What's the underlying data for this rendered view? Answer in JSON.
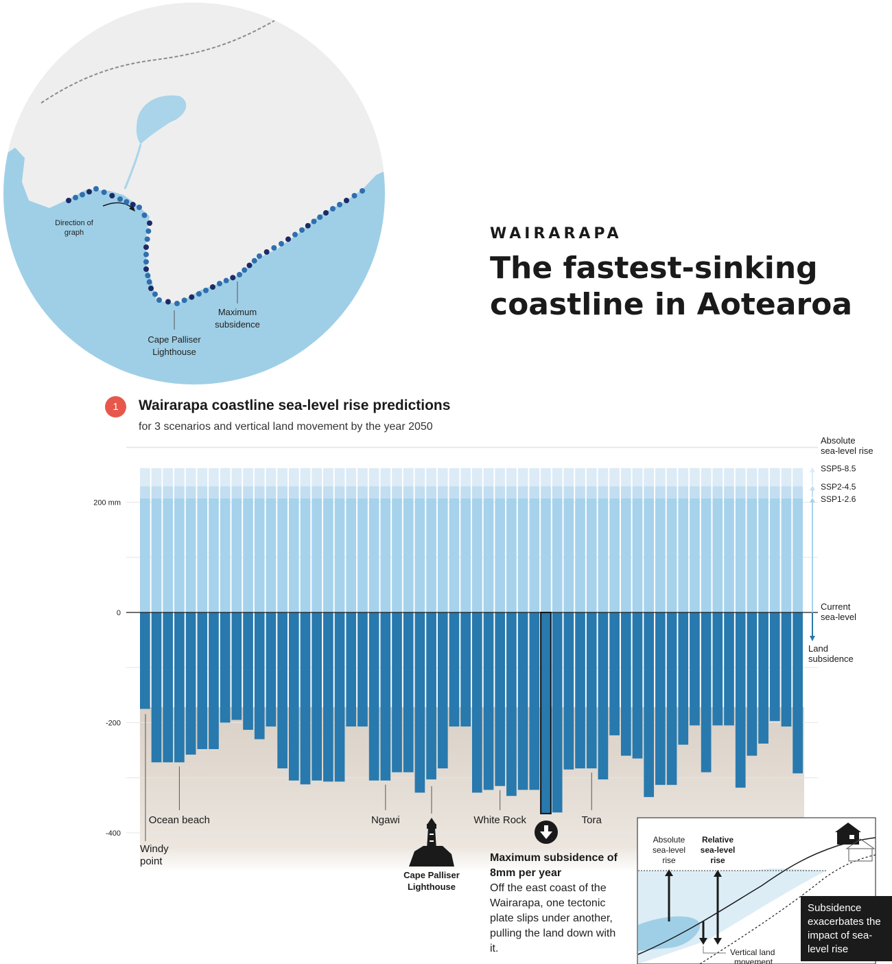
{
  "header": {
    "kicker": "WAIRARAPA",
    "headline": "The fastest-sinking coastline in Aotearoa"
  },
  "map": {
    "direction_label": [
      "Direction of",
      "graph"
    ],
    "cape_label": [
      "Cape Palliser",
      "Lighthouse"
    ],
    "max_label": [
      "Maximum",
      "subsidence"
    ],
    "colors": {
      "sea": "#9fcfe6",
      "land": "#efefef",
      "dot_light": "#2f6fae",
      "dot_dark": "#1c2a66"
    }
  },
  "section": {
    "number": "1",
    "title": "Wairarapa coastline sea-level rise predictions",
    "subtitle": "for 3 scenarios and vertical land movement by the year 2050"
  },
  "chart_data": {
    "type": "bar",
    "title": "Wairarapa coastline sea-level rise predictions",
    "subtitle": "for 3 scenarios and vertical land movement by the year 2050",
    "ylabel": "",
    "ylim": [
      -400,
      260
    ],
    "yticks": [
      {
        "value": 200,
        "label": "200 mm"
      },
      {
        "value": 0,
        "label": "0"
      },
      {
        "value": -200,
        "label": "-200"
      },
      {
        "value": -400,
        "label": "-400"
      }
    ],
    "gridlines": [
      300,
      100,
      -100,
      -300
    ],
    "absolute_rise": [
      {
        "name": "SSP5-8.5",
        "value": 262
      },
      {
        "name": "SSP2-4.5",
        "value": 229
      },
      {
        "name": "SSP1-2.6",
        "value": 207
      }
    ],
    "land_subsidence": [
      -175,
      -272,
      -272,
      -272,
      -258,
      -248,
      -248,
      -200,
      -195,
      -213,
      -230,
      -207,
      -283,
      -305,
      -312,
      -305,
      -307,
      -307,
      -207,
      -207,
      -305,
      -305,
      -290,
      -290,
      -327,
      -303,
      -283,
      -207,
      -207,
      -327,
      -322,
      -315,
      -333,
      -322,
      -322,
      -365,
      -363,
      -285,
      -283,
      -283,
      -303,
      -223,
      -260,
      -265,
      -335,
      -313,
      -313,
      -240,
      -205,
      -290,
      -205,
      -205,
      -318,
      -260,
      -238,
      -197,
      -207,
      -292
    ],
    "highlight_index": 35,
    "locations": [
      {
        "label": "Ocean beach",
        "index": 3
      },
      {
        "label": "Ngawi",
        "index": 21
      },
      {
        "label": "White Rock",
        "index": 31
      },
      {
        "label": "Tora",
        "index": 39
      }
    ],
    "colors": {
      "ssp585": "#dcebf6",
      "ssp245": "#c2def0",
      "ssp126": "#a6d2ec",
      "subsidence": "#2879ad",
      "ground": "#e2dbd4"
    }
  },
  "chart_labels": {
    "absolute": [
      "Absolute",
      "sea-level rise"
    ],
    "current": [
      "Current",
      "sea-level"
    ],
    "land": [
      "Land",
      "subsidence"
    ],
    "windy": [
      "Windy",
      "point"
    ],
    "cape": [
      "Cape Palliser",
      "Lighthouse"
    ]
  },
  "max_subsidence": {
    "title": "Maximum subsidence of 8mm per year",
    "body": "Off the east coast of the Wairarapa, one tectonic plate slips under another, pulling the land down with it."
  },
  "inset": {
    "absolute": [
      "Absolute",
      "sea-level",
      "rise"
    ],
    "relative": [
      "Relative",
      "sea-level",
      "rise"
    ],
    "vertical": [
      "Vertical land",
      "movement"
    ],
    "caption": "Subsidence exacerbates the impact of sea- level rise"
  }
}
